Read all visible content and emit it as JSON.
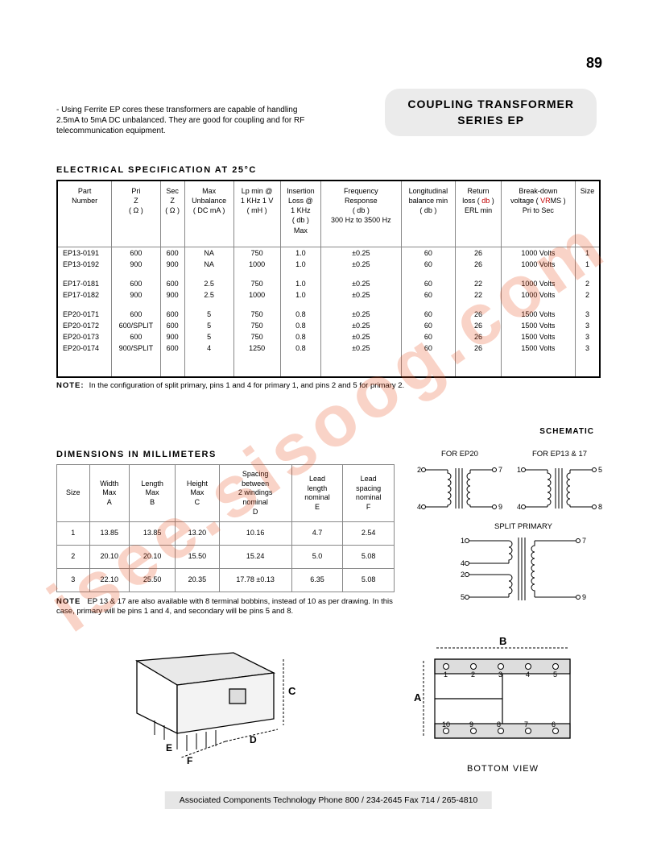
{
  "page_number": "89",
  "title_line1": "COUPLING  TRANSFORMER",
  "title_line2": "SERIES  EP",
  "intro_text": "Using Ferrite EP cores these transformers are capable of handling 2.5mA to 5mA DC unbalanced. They are good for coupling  and  for RF telecommunication equipment.",
  "elec_title": "ELECTRICAL  SPECIFICATION  AT  25°C",
  "elec_headers": {
    "h1": "Part\nNumber",
    "h2": "Pri\nZ\n( Ω )",
    "h3": "Sec\nZ\n( Ω )",
    "h4": "Max\nUnbalance\n( DC mA )",
    "h5": "Lp min @\n1 KHz 1 V\n( mH )",
    "h6": "Insertion\nLoss @\n1 KHz\n( db )\nMax",
    "h7": "Frequency\nResponse\n( db )\n300 Hz to 3500 Hz",
    "h8": "Longitudinal\nbalance  min\n( db )",
    "h9a": "Return\nloss ( ",
    "h9b": "db",
    "h9c": " )\nERL  min",
    "h10a": "Break-down\nvoltage  ( ",
    "h10b": "VR",
    "h10c": "MS )\nPri  to  Sec",
    "h11": "Size"
  },
  "elec_rows": [
    [
      "EP13-0191",
      "600",
      "600",
      "NA",
      "750",
      "1.0",
      "±0.25",
      "60",
      "26",
      "1000 Volts",
      "1"
    ],
    [
      "EP13-0192",
      "900",
      "900",
      "NA",
      "1000",
      "1.0",
      "±0.25",
      "60",
      "26",
      "1000 Volts",
      "1"
    ],
    null,
    [
      "EP17-0181",
      "600",
      "600",
      "2.5",
      "750",
      "1.0",
      "±0.25",
      "60",
      "22",
      "1000 Volts",
      "2"
    ],
    [
      "EP17-0182",
      "900",
      "900",
      "2.5",
      "1000",
      "1.0",
      "±0.25",
      "60",
      "22",
      "1000 Volts",
      "2"
    ],
    null,
    [
      "EP20-0171",
      "600",
      "600",
      "5",
      "750",
      "0.8",
      "±0.25",
      "60",
      "26",
      "1500 Volts",
      "3"
    ],
    [
      "EP20-0172",
      "600/SPLIT",
      "600",
      "5",
      "750",
      "0.8",
      "±0.25",
      "60",
      "26",
      "1500 Volts",
      "3"
    ],
    [
      "EP20-0173",
      "600",
      "900",
      "5",
      "750",
      "0.8",
      "±0.25",
      "60",
      "26",
      "1500 Volts",
      "3"
    ],
    [
      "EP20-0174",
      "900/SPLIT",
      "600",
      "4",
      "1250",
      "0.8",
      "±0.25",
      "60",
      "26",
      "1500 Volts",
      "3"
    ]
  ],
  "elec_note_label": "NOTE:",
  "elec_note": "In the configuration of split primary, pins 1 and 4 for primary 1, and pins 2 and 5 for primary 2.",
  "schematic_label": "SCHEMATIC",
  "dims_title": "DIMENSIONS  IN  MILLIMETERS",
  "dims_headers": {
    "h1": "Size",
    "h2": "Width\nMax\nA",
    "h3": "Length\nMax\nB",
    "h4": "Height\nMax\nC",
    "h5": "Spacing\nbetween\n2 windings\nnominal\nD",
    "h6": "Lead\nlength\nnominal\nE",
    "h7": "Lead\nspacing\nnominal\nF"
  },
  "dims_rows": [
    [
      "1",
      "13.85",
      "13.85",
      "13.20",
      "10.16",
      "4.7",
      "2.54"
    ],
    [
      "2",
      "20.10",
      "20.10",
      "15.50",
      "15.24",
      "5.0",
      "5.08"
    ],
    [
      "3",
      "22.10",
      "25.50",
      "20.35",
      "17.78 ±0.13",
      "6.35",
      "5.08"
    ]
  ],
  "dims_note_label": "NOTE",
  "dims_note": "EP 13 & 17 are also available with 8 terminal bobbins, instead of 10 as per drawing. In this case, primary will be pins 1 and 4, and secondary will be pins 5 and 8.",
  "schem_ep20_label": "FOR  EP20",
  "schem_ep1317_label": "FOR EP13 & 17",
  "schem_split_label": "SPLIT  PRIMARY",
  "bottom_view_label": "BOTTOM  VIEW",
  "footer": "Associated Components Technology Phone 800 / 234-2645 Fax 714 / 265-4810",
  "watermark": "isee.sisoog.com",
  "colors": {
    "watermark": "rgba(230,80,30,0.25)",
    "accent_red": "#c00000",
    "table_border": "#888888",
    "badge_bg": "#ebebeb",
    "footer_bg": "#e6e6e6"
  },
  "schematic_pins": {
    "ep20": {
      "tl": "2",
      "bl": "4",
      "tr": "7",
      "br": "9"
    },
    "ep1317": {
      "tl": "1",
      "bl": "4",
      "tr": "5",
      "br": "8"
    },
    "split": {
      "p1": "1",
      "p4": "4",
      "p2": "2",
      "p5": "5",
      "tr": "7",
      "br": "9"
    }
  },
  "bottom_pins_top": [
    "1",
    "2",
    "3",
    "4",
    "5"
  ],
  "bottom_pins_bot": [
    "10",
    "9",
    "8",
    "7",
    "6"
  ],
  "dim_letters": {
    "A": "A",
    "B": "B",
    "C": "C",
    "D": "D",
    "E": "E",
    "F": "F"
  }
}
